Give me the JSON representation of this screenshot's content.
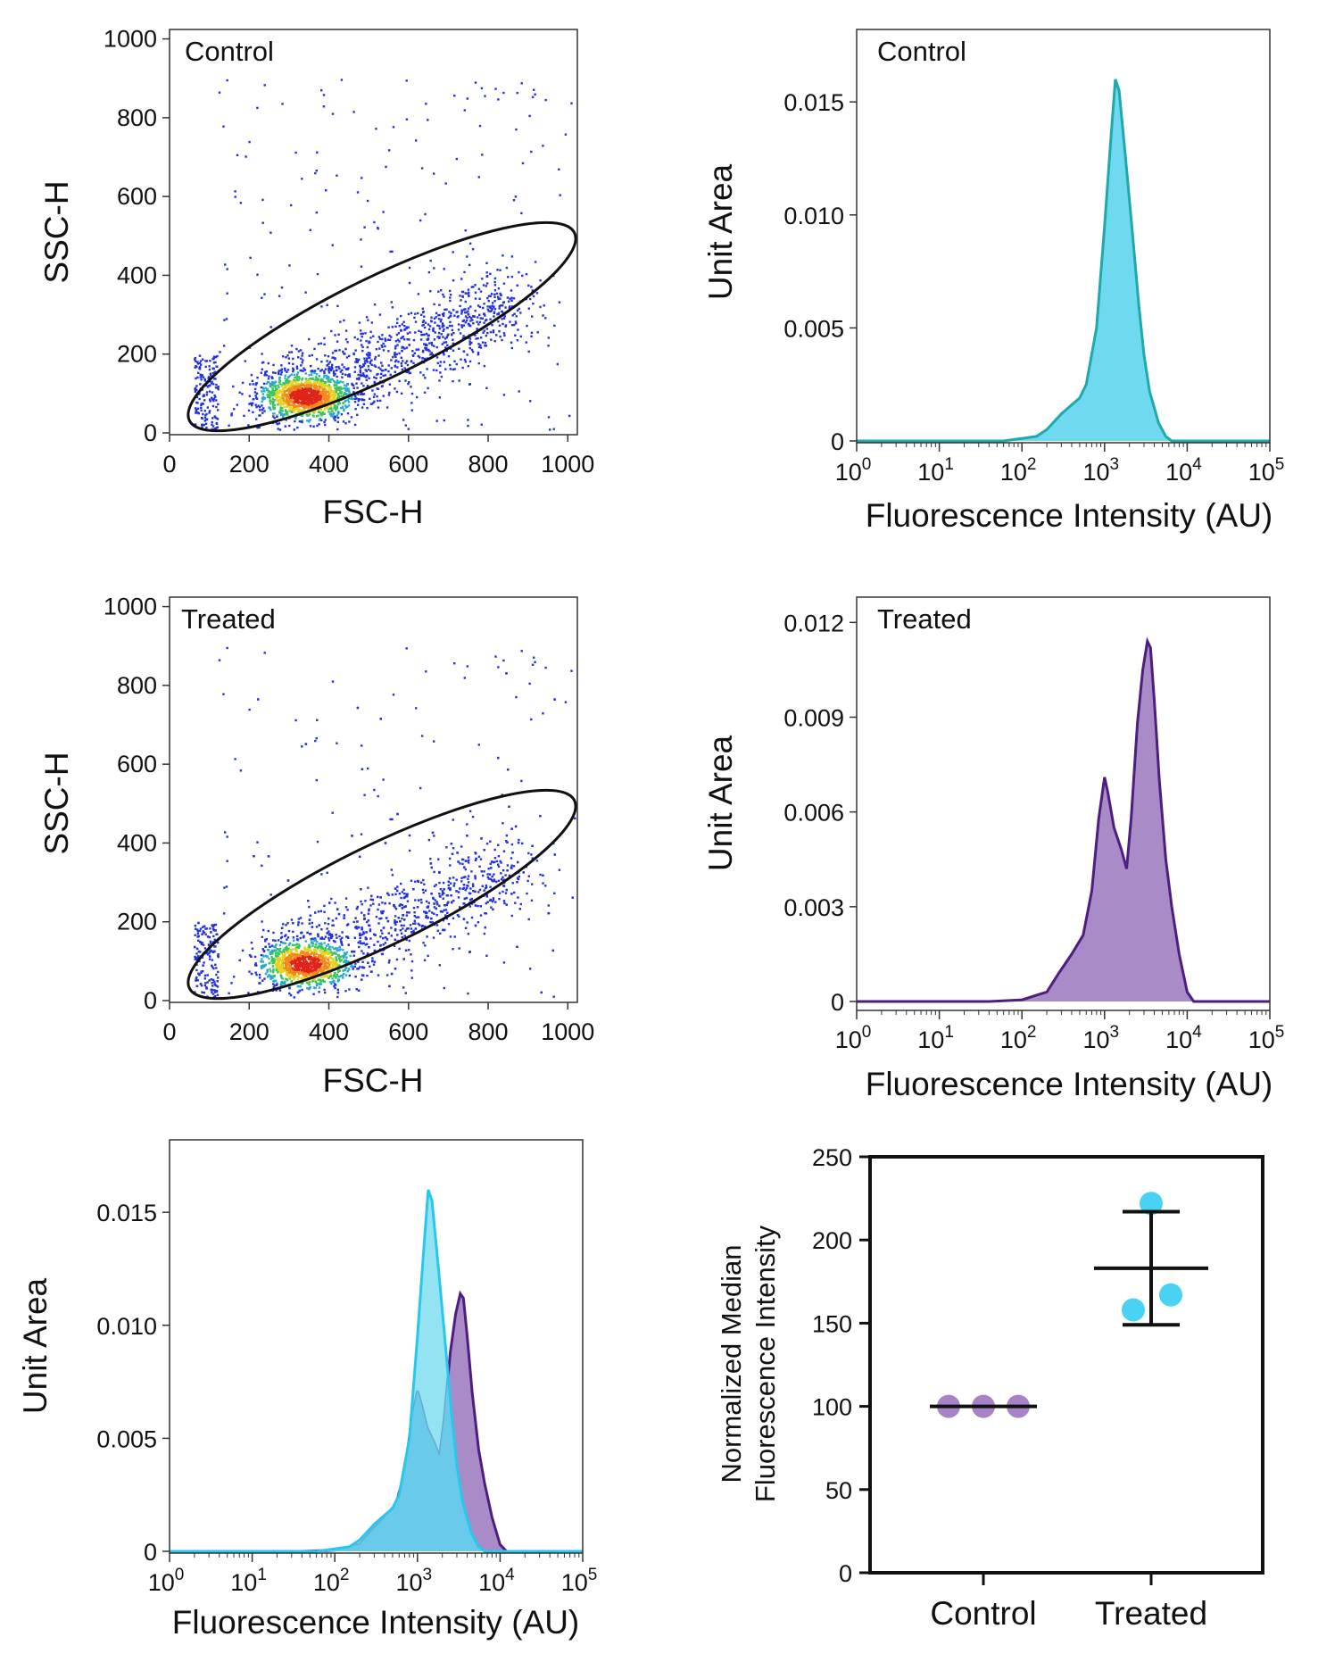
{
  "colors": {
    "control_line": "#1fa9a9",
    "control_fill": "#6fd9ef",
    "treated_line": "#4d1e7f",
    "treated_fill": "#a98bc7",
    "overlay_fill": "#5a9fd6",
    "control_dots": "#a782c6",
    "treated_dots": "#4ad2f5",
    "gate": "#111111"
  },
  "chart_data": [
    {
      "id": "scatter-control",
      "type": "scatter",
      "title": "Control",
      "xlabel": "FSC-H",
      "ylabel": "SSC-H",
      "xlim": [
        0,
        1024
      ],
      "ylim": [
        0,
        1024
      ],
      "xticks": [
        "0",
        "200",
        "400",
        "600",
        "800",
        "1000"
      ],
      "yticks": [
        "0",
        "200",
        "400",
        "600",
        "800",
        "1000"
      ],
      "density_core": {
        "x": 340,
        "y": 95
      },
      "gate_ellipse": {
        "center_x": 590,
        "center_y": 230,
        "major_end_a": [
          200,
          150
        ],
        "major_end_b": [
          890,
          380
        ]
      },
      "color_scale": "density (blue-green-yellow-red)"
    },
    {
      "id": "hist-control",
      "type": "area",
      "title": "Control",
      "xlabel": "Fluorescence Intensity (AU)",
      "ylabel": "Unit Area",
      "x_scale": "log",
      "xlim": [
        1,
        100000
      ],
      "ylim": [
        0,
        0.0171
      ],
      "xticks": [
        "1",
        "10",
        "100",
        "1000",
        "10000",
        "100000"
      ],
      "yticks": [
        "0",
        "0.005",
        "0.010",
        "0.015"
      ],
      "series": [
        {
          "x": [
            1,
            60,
            150,
            200,
            300,
            400,
            500,
            600,
            800,
            1000,
            1200,
            1350,
            1500,
            1800,
            2200,
            2600,
            3000,
            3500,
            4500,
            5500,
            6500,
            100000
          ],
          "y": [
            0,
            0,
            0.0002,
            0.0005,
            0.0012,
            0.0016,
            0.0019,
            0.0025,
            0.005,
            0.0095,
            0.0135,
            0.016,
            0.0155,
            0.0125,
            0.009,
            0.006,
            0.0038,
            0.0022,
            0.0008,
            0.0002,
            0,
            0
          ]
        }
      ]
    },
    {
      "id": "scatter-treated",
      "type": "scatter",
      "title": "Treated",
      "xlabel": "FSC-H",
      "ylabel": "SSC-H",
      "xlim": [
        0,
        1024
      ],
      "ylim": [
        0,
        1024
      ],
      "xticks": [
        "0",
        "200",
        "400",
        "600",
        "800",
        "1000"
      ],
      "yticks": [
        "0",
        "200",
        "400",
        "600",
        "800",
        "1000"
      ],
      "density_core": {
        "x": 340,
        "y": 95
      },
      "gate_ellipse": {
        "center_x": 590,
        "center_y": 230,
        "major_end_a": [
          200,
          150
        ],
        "major_end_b": [
          890,
          380
        ]
      },
      "color_scale": "density (blue-green-yellow-red)"
    },
    {
      "id": "hist-treated",
      "type": "area",
      "title": "Treated",
      "xlabel": "Fluorescence Intensity (AU)",
      "ylabel": "Unit Area",
      "x_scale": "log",
      "xlim": [
        1,
        100000
      ],
      "ylim": [
        0,
        0.0128
      ],
      "xticks": [
        "1",
        "10",
        "100",
        "1000",
        "10000",
        "100000"
      ],
      "yticks": [
        "0",
        "0.003",
        "0.006",
        "0.009",
        "0.012"
      ],
      "series": [
        {
          "x": [
            1,
            40,
            100,
            150,
            200,
            280,
            400,
            550,
            700,
            850,
            1000,
            1100,
            1300,
            1600,
            1850,
            2100,
            2500,
            2900,
            3300,
            3600,
            4000,
            4600,
            5500,
            6500,
            8000,
            10000,
            12000,
            100000
          ],
          "y": [
            0,
            0,
            5e-05,
            0.0002,
            0.0003,
            0.0009,
            0.0015,
            0.0021,
            0.0035,
            0.0058,
            0.0071,
            0.0066,
            0.0055,
            0.0048,
            0.0042,
            0.0058,
            0.0088,
            0.0105,
            0.0114,
            0.0112,
            0.0095,
            0.007,
            0.0045,
            0.003,
            0.0015,
            0.0003,
            0,
            0
          ]
        }
      ]
    },
    {
      "id": "hist-overlay",
      "type": "area",
      "title": "",
      "xlabel": "Fluorescence Intensity (AU)",
      "ylabel": "Unit Area",
      "x_scale": "log",
      "xlim": [
        1,
        100000
      ],
      "ylim": [
        0,
        0.0171
      ],
      "xticks": [
        "1",
        "10",
        "100",
        "1000",
        "10000",
        "100000"
      ],
      "yticks": [
        "0",
        "0.005",
        "0.010",
        "0.015"
      ],
      "series": [
        {
          "color_key": "treated",
          "x": [
            1,
            40,
            100,
            150,
            200,
            280,
            400,
            550,
            700,
            850,
            1000,
            1100,
            1300,
            1600,
            1850,
            2100,
            2500,
            2900,
            3300,
            3600,
            4000,
            4600,
            5500,
            6500,
            8000,
            10000,
            12000,
            100000
          ],
          "y": [
            0,
            0,
            5e-05,
            0.0002,
            0.0003,
            0.0009,
            0.0015,
            0.0021,
            0.0035,
            0.0058,
            0.0071,
            0.0066,
            0.0055,
            0.0048,
            0.0042,
            0.0058,
            0.0088,
            0.0105,
            0.0114,
            0.0112,
            0.0095,
            0.007,
            0.0045,
            0.003,
            0.0015,
            0.0003,
            0,
            0
          ]
        },
        {
          "color_key": "control",
          "x": [
            1,
            60,
            150,
            200,
            300,
            400,
            500,
            600,
            800,
            1000,
            1200,
            1350,
            1500,
            1800,
            2200,
            2600,
            3000,
            3500,
            4500,
            5500,
            6500,
            100000
          ],
          "y": [
            0,
            0,
            0.0002,
            0.0005,
            0.0012,
            0.0016,
            0.0019,
            0.0025,
            0.005,
            0.0095,
            0.0135,
            0.016,
            0.0155,
            0.0125,
            0.009,
            0.006,
            0.0038,
            0.0022,
            0.0008,
            0.0002,
            0,
            0
          ]
        }
      ]
    },
    {
      "id": "dot-summary",
      "type": "scatter",
      "title": "",
      "xlabel": "",
      "ylabel": "Normalized Median Fluorescence Intensity",
      "ylabel_lines": [
        "Normalized Median",
        "Fluorescence Intensity"
      ],
      "categories": [
        "Control",
        "Treated"
      ],
      "ylim": [
        0,
        250
      ],
      "yticks": [
        "0",
        "50",
        "100",
        "150",
        "200",
        "250"
      ],
      "series": [
        {
          "category": "Control",
          "points": [
            100,
            100,
            100
          ],
          "mean": 100,
          "sd": 0
        },
        {
          "category": "Treated",
          "points": [
            222,
            167,
            158
          ],
          "mean": 183,
          "sd": 34
        }
      ]
    }
  ]
}
